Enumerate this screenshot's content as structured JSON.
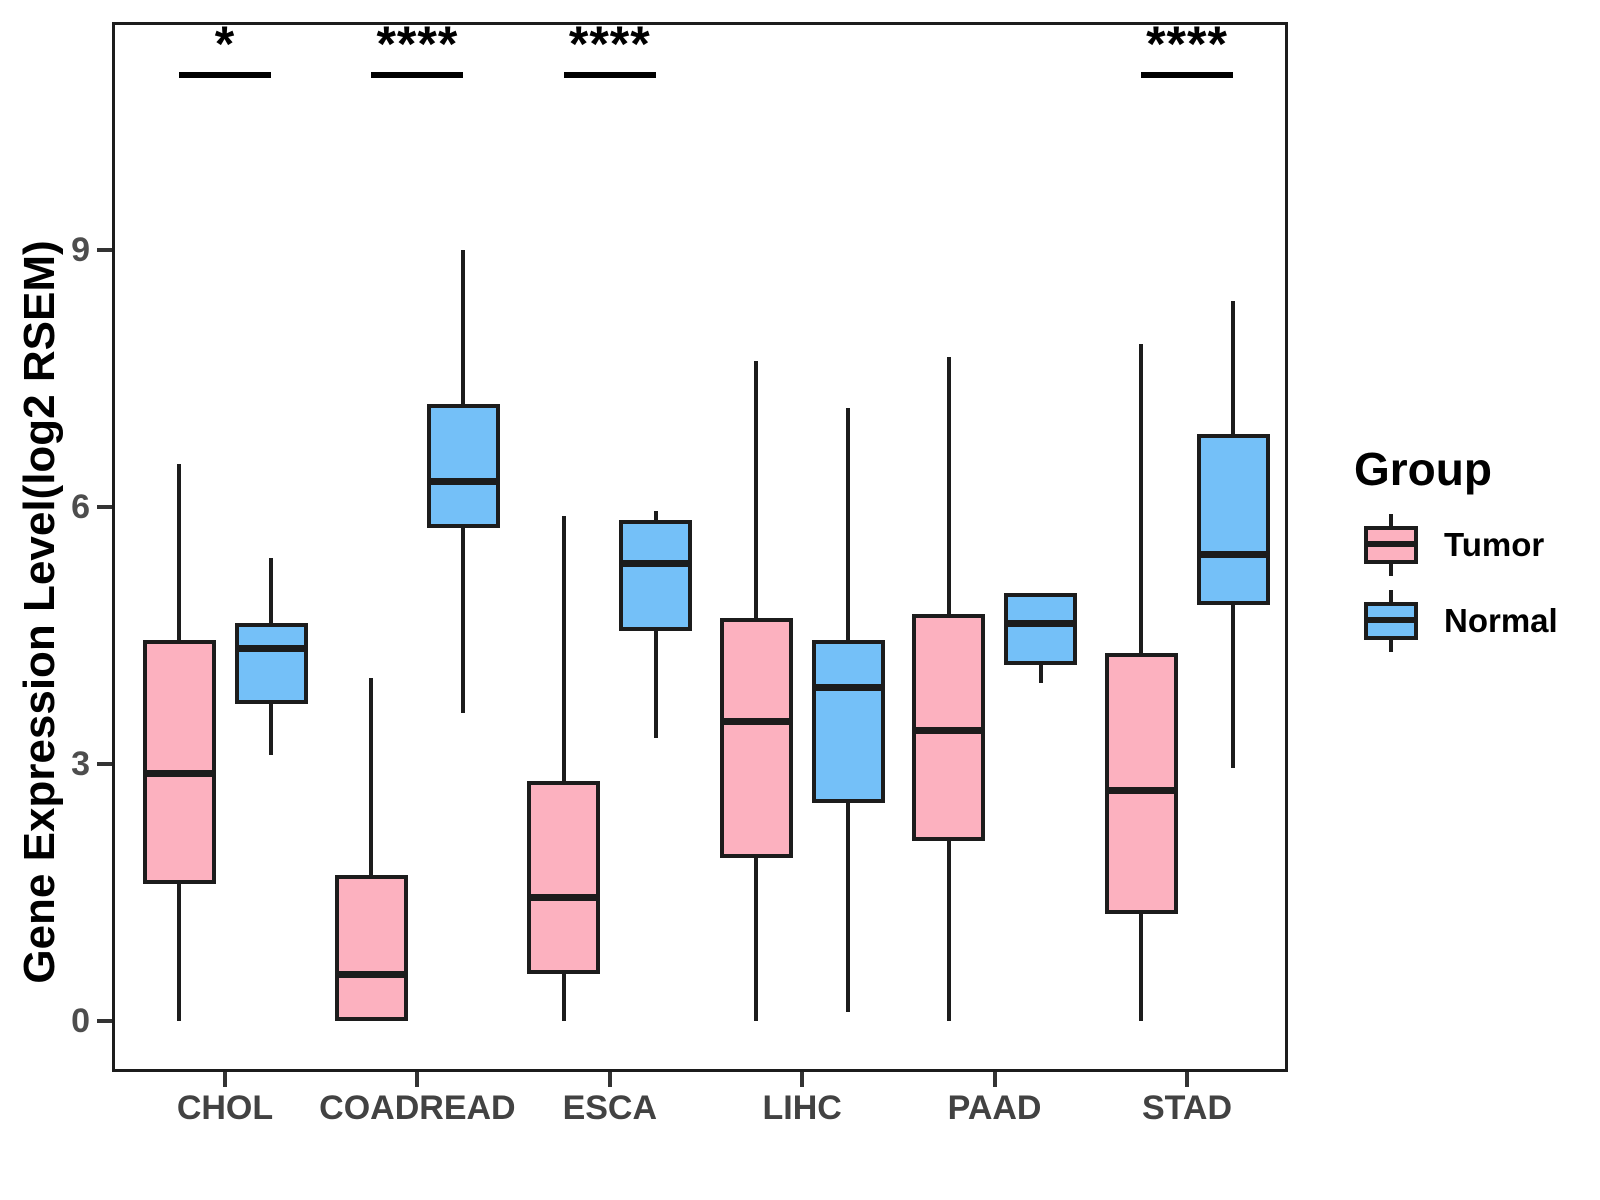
{
  "chart_data": {
    "type": "boxplot",
    "title": "",
    "xlabel": "",
    "ylabel": "Gene Expression Level(log2 RSEM)",
    "ylim": [
      -0.6,
      11.6
    ],
    "yticks": [
      0,
      3,
      6,
      9
    ],
    "grid": false,
    "categories": [
      "CHOL",
      "COADREAD",
      "ESCA",
      "LIHC",
      "PAAD",
      "STAD"
    ],
    "significance": [
      "*",
      "****",
      "****",
      "",
      "",
      "****"
    ],
    "colors": {
      "tumor_fill": "#FCB1BF",
      "normal_fill": "#74C0F8",
      "line": "#1c1c1c",
      "axis_text": "#4d4d4d",
      "annotation": "#000000"
    },
    "legend": {
      "title": "Group",
      "position": "right",
      "entries": [
        {
          "label": "Tumor",
          "color": "#FCB1BF"
        },
        {
          "label": "Normal",
          "color": "#74C0F8"
        }
      ]
    },
    "series": [
      {
        "name": "Tumor",
        "color": "#FCB1BF",
        "boxes": [
          {
            "category": "CHOL",
            "min": 0,
            "q1": 1.6,
            "median": 2.9,
            "q3": 4.45,
            "max": 6.5
          },
          {
            "category": "COADREAD",
            "min": 0,
            "q1": 0,
            "median": 0.55,
            "q3": 1.7,
            "max": 4.0
          },
          {
            "category": "ESCA",
            "min": 0,
            "q1": 0.55,
            "median": 1.45,
            "q3": 2.8,
            "max": 5.9
          },
          {
            "category": "LIHC",
            "min": 0,
            "q1": 1.9,
            "median": 3.5,
            "q3": 4.7,
            "max": 7.7
          },
          {
            "category": "PAAD",
            "min": 0,
            "q1": 2.1,
            "median": 3.4,
            "q3": 4.75,
            "max": 7.75
          },
          {
            "category": "STAD",
            "min": 0,
            "q1": 1.25,
            "median": 2.7,
            "q3": 4.3,
            "max": 7.9
          }
        ]
      },
      {
        "name": "Normal",
        "color": "#74C0F8",
        "boxes": [
          {
            "category": "CHOL",
            "min": 3.1,
            "q1": 3.7,
            "median": 4.35,
            "q3": 4.65,
            "max": 5.4
          },
          {
            "category": "COADREAD",
            "min": 3.6,
            "q1": 5.75,
            "median": 6.3,
            "q3": 7.2,
            "max": 9.0
          },
          {
            "category": "ESCA",
            "min": 3.3,
            "q1": 4.55,
            "median": 5.35,
            "q3": 5.85,
            "max": 5.95
          },
          {
            "category": "LIHC",
            "min": 0.1,
            "q1": 2.55,
            "median": 3.9,
            "q3": 4.45,
            "max": 7.15
          },
          {
            "category": "PAAD",
            "min": 3.95,
            "q1": 4.15,
            "median": 4.65,
            "q3": 5.0,
            "max": 5.0
          },
          {
            "category": "STAD",
            "min": 2.95,
            "q1": 4.85,
            "median": 5.45,
            "q3": 6.85,
            "max": 8.4
          }
        ]
      }
    ]
  }
}
